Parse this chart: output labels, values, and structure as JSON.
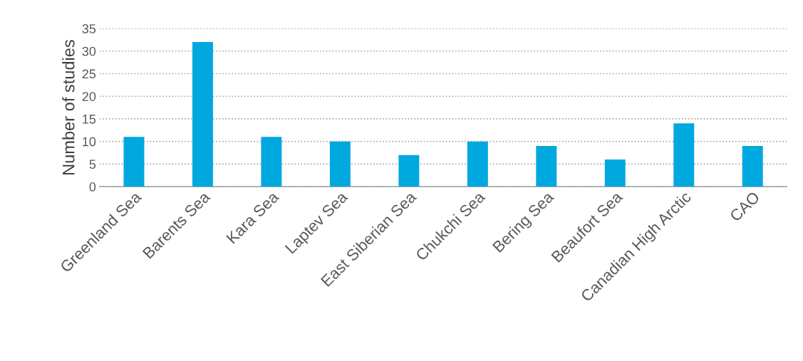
{
  "chart_data": {
    "type": "bar",
    "ylabel": "Number of studies",
    "categories": [
      "Greenland Sea",
      "Barents Sea",
      "Kara Sea",
      "Laptev Sea",
      "East Siberian Sea",
      "Chukchi Sea",
      "Bering Sea",
      "Beaufort Sea",
      "Canadian High Arctic",
      "CAO"
    ],
    "values": [
      11,
      32,
      11,
      10,
      7,
      10,
      9,
      6,
      14,
      9
    ],
    "color": "#00a8e0",
    "ylim": [
      0,
      35
    ],
    "yticks": [
      0,
      5,
      10,
      15,
      20,
      25,
      30,
      35
    ],
    "grid": "y",
    "legend": false
  }
}
